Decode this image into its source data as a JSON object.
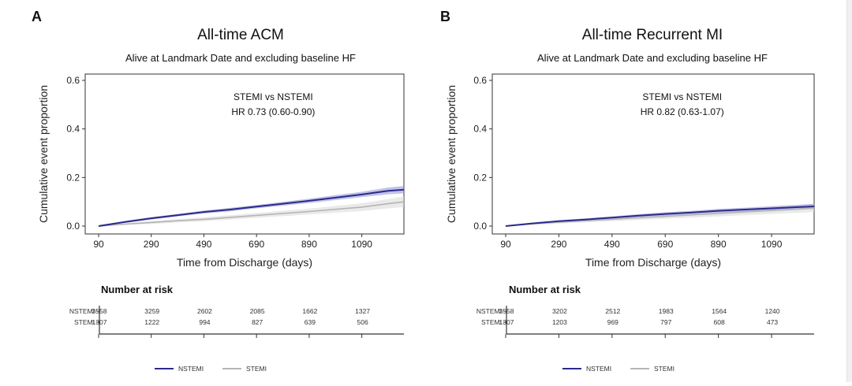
{
  "colors": {
    "nstemi": "#2a2a8c",
    "nstemi_band": "#8f8fd6",
    "stemi": "#b5b5b5",
    "stemi_band": "#d9d9d9",
    "axis": "#222222"
  },
  "chart_data": [
    {
      "panel": "A",
      "type": "line",
      "title": "All-time ACM",
      "subtitle": "Alive at Landmark Date and excluding baseline HF",
      "xlabel": "Time from Discharge (days)",
      "ylabel": "Cumulative event proportion",
      "xlim": [
        90,
        1250
      ],
      "ylim": [
        0,
        0.6
      ],
      "xticks": [
        90,
        290,
        490,
        690,
        890,
        1090
      ],
      "yticks": [
        0.0,
        0.2,
        0.4,
        0.6
      ],
      "ytick_labels": [
        "0.0",
        "0.2",
        "0.4",
        "0.6"
      ],
      "annotation": [
        "STEMI vs NSTEMI",
        "HR 0.73 (0.60-0.90)"
      ],
      "grid": false,
      "series": [
        {
          "name": "NSTEMI",
          "color_key": "nstemi",
          "x": [
            90,
            190,
            290,
            390,
            490,
            590,
            690,
            790,
            890,
            990,
            1090,
            1190,
            1250
          ],
          "y": [
            0.0,
            0.017,
            0.032,
            0.045,
            0.058,
            0.068,
            0.08,
            0.092,
            0.104,
            0.117,
            0.13,
            0.145,
            0.15
          ],
          "lower": [
            0.0,
            0.013,
            0.027,
            0.04,
            0.052,
            0.061,
            0.073,
            0.084,
            0.095,
            0.107,
            0.119,
            0.131,
            0.135
          ],
          "upper": [
            0.0,
            0.021,
            0.037,
            0.05,
            0.064,
            0.075,
            0.087,
            0.1,
            0.113,
            0.127,
            0.141,
            0.159,
            0.165
          ]
        },
        {
          "name": "STEMI",
          "color_key": "stemi",
          "x": [
            90,
            190,
            290,
            390,
            490,
            590,
            690,
            790,
            890,
            990,
            1090,
            1190,
            1250
          ],
          "y": [
            0.0,
            0.008,
            0.015,
            0.022,
            0.028,
            0.036,
            0.044,
            0.052,
            0.06,
            0.069,
            0.078,
            0.092,
            0.1
          ],
          "lower": [
            0.0,
            0.004,
            0.009,
            0.015,
            0.02,
            0.027,
            0.034,
            0.041,
            0.048,
            0.055,
            0.062,
            0.073,
            0.078
          ],
          "upper": [
            0.0,
            0.012,
            0.021,
            0.029,
            0.036,
            0.045,
            0.054,
            0.063,
            0.072,
            0.083,
            0.094,
            0.111,
            0.122
          ]
        }
      ],
      "risk_table": {
        "title": "Number at risk",
        "rows": [
          {
            "label": "NSTEMI",
            "color_key": "nstemi",
            "values": [
              "3558",
              "3259",
              "2602",
              "2085",
              "1662",
              "1327"
            ]
          },
          {
            "label": "STEMI",
            "color_key": "stemi",
            "values": [
              "1307",
              "1222",
              "994",
              "827",
              "639",
              "506"
            ]
          }
        ]
      },
      "legend": [
        "NSTEMI",
        "STEMI"
      ],
      "legend_position": "bottom"
    },
    {
      "panel": "B",
      "type": "line",
      "title": "All-time Recurrent MI",
      "subtitle": "Alive at Landmark Date and excluding baseline HF",
      "xlabel": "Time from Discharge (days)",
      "ylabel": "Cumulative event proportion",
      "xlim": [
        90,
        1250
      ],
      "ylim": [
        0,
        0.6
      ],
      "xticks": [
        90,
        290,
        490,
        690,
        890,
        1090
      ],
      "yticks": [
        0.0,
        0.2,
        0.4,
        0.6
      ],
      "ytick_labels": [
        "0.0",
        "0.2",
        "0.4",
        "0.6"
      ],
      "annotation": [
        "STEMI vs NSTEMI",
        "HR 0.82 (0.63-1.07)"
      ],
      "grid": false,
      "series": [
        {
          "name": "NSTEMI",
          "color_key": "nstemi",
          "x": [
            90,
            190,
            290,
            390,
            490,
            590,
            690,
            790,
            890,
            990,
            1090,
            1190,
            1250
          ],
          "y": [
            0.0,
            0.011,
            0.02,
            0.027,
            0.035,
            0.043,
            0.05,
            0.056,
            0.063,
            0.068,
            0.073,
            0.078,
            0.081
          ],
          "lower": [
            0.0,
            0.008,
            0.016,
            0.022,
            0.03,
            0.037,
            0.043,
            0.049,
            0.055,
            0.06,
            0.064,
            0.068,
            0.07
          ],
          "upper": [
            0.0,
            0.014,
            0.024,
            0.032,
            0.04,
            0.049,
            0.057,
            0.063,
            0.071,
            0.076,
            0.082,
            0.088,
            0.092
          ]
        },
        {
          "name": "STEMI",
          "color_key": "stemi",
          "x": [
            90,
            190,
            290,
            390,
            490,
            590,
            690,
            790,
            890,
            990,
            1090,
            1190,
            1250
          ],
          "y": [
            0.0,
            0.009,
            0.016,
            0.022,
            0.028,
            0.034,
            0.04,
            0.046,
            0.052,
            0.058,
            0.064,
            0.07,
            0.075
          ],
          "lower": [
            0.0,
            0.005,
            0.01,
            0.015,
            0.02,
            0.025,
            0.03,
            0.035,
            0.04,
            0.045,
            0.05,
            0.055,
            0.058
          ],
          "upper": [
            0.0,
            0.013,
            0.022,
            0.029,
            0.036,
            0.043,
            0.05,
            0.057,
            0.064,
            0.071,
            0.078,
            0.085,
            0.092
          ]
        }
      ],
      "risk_table": {
        "title": "Number at risk",
        "rows": [
          {
            "label": "NSTEMI",
            "color_key": "nstemi",
            "values": [
              "3558",
              "3202",
              "2512",
              "1983",
              "1564",
              "1240"
            ]
          },
          {
            "label": "STEMI",
            "color_key": "stemi",
            "values": [
              "1307",
              "1203",
              "969",
              "797",
              "608",
              "473"
            ]
          }
        ]
      },
      "legend": [
        "NSTEMI",
        "STEMI"
      ],
      "legend_position": "bottom"
    }
  ]
}
